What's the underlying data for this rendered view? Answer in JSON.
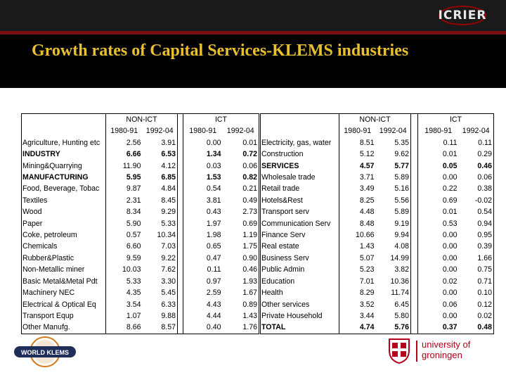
{
  "header": {
    "logo_text": "ICRIER",
    "title": "Growth rates of Capital Services-KLEMS industries"
  },
  "table_left": {
    "group_headers": [
      "NON-ICT",
      "ICT"
    ],
    "period_headers": [
      "1980-91",
      "1992-04",
      "1980-91",
      "1992-04"
    ],
    "rows": [
      {
        "name": "Agriculture, Hunting etc",
        "v": [
          "2.56",
          "3.91",
          "0.00",
          "0.01"
        ],
        "bold": false
      },
      {
        "name": "INDUSTRY",
        "v": [
          "6.66",
          "6.53",
          "1.34",
          "0.72"
        ],
        "bold": true
      },
      {
        "name": "Mining&Quarrying",
        "v": [
          "11.90",
          "4.12",
          "0.03",
          "0.06"
        ],
        "bold": false
      },
      {
        "name": "MANUFACTURING",
        "v": [
          "5.95",
          "6.85",
          "1.53",
          "0.82"
        ],
        "bold": true
      },
      {
        "name": "Food, Beverage, Tobac",
        "v": [
          "9.87",
          "4.84",
          "0.54",
          "0.21"
        ],
        "bold": false
      },
      {
        "name": "Textiles",
        "v": [
          "2.31",
          "8.45",
          "3.81",
          "0.49"
        ],
        "bold": false
      },
      {
        "name": "Wood",
        "v": [
          "8.34",
          "9.29",
          "0.43",
          "2.73"
        ],
        "bold": false
      },
      {
        "name": "Paper",
        "v": [
          "5.90",
          "5.33",
          "1.97",
          "0.69"
        ],
        "bold": false
      },
      {
        "name": "Coke, petroleum",
        "v": [
          "0.57",
          "10.34",
          "1.98",
          "1.19"
        ],
        "bold": false
      },
      {
        "name": "Chemicals",
        "v": [
          "6.60",
          "7.03",
          "0.65",
          "1.75"
        ],
        "bold": false
      },
      {
        "name": "Rubber&Plastic",
        "v": [
          "9.59",
          "9.22",
          "0.47",
          "0.90"
        ],
        "bold": false
      },
      {
        "name": "Non-Metallic miner",
        "v": [
          "10.03",
          "7.62",
          "0.11",
          "0.46"
        ],
        "bold": false
      },
      {
        "name": "Basic Metal&Metal Pdt",
        "v": [
          "5.33",
          "3.30",
          "0.97",
          "1.93"
        ],
        "bold": false
      },
      {
        "name": "Machinery NEC",
        "v": [
          "4.35",
          "5.45",
          "2.59",
          "1.67"
        ],
        "bold": false
      },
      {
        "name": "Electrical & Optical Eq",
        "v": [
          "3.54",
          "6.33",
          "4.43",
          "0.89"
        ],
        "bold": false
      },
      {
        "name": "Transport Equp",
        "v": [
          "1.07",
          "9.88",
          "4.44",
          "1.43"
        ],
        "bold": false
      },
      {
        "name": "Other Manufg.",
        "v": [
          "8.66",
          "8.57",
          "0.40",
          "1.76"
        ],
        "bold": false
      }
    ]
  },
  "table_right": {
    "group_headers": [
      "NON-ICT",
      "ICT"
    ],
    "period_headers": [
      "1980-91",
      "1992-04",
      "1980-91",
      "1992-04"
    ],
    "rows": [
      {
        "name": "Electricity, gas, water",
        "v": [
          "8.51",
          "5.35",
          "0.11",
          "0.11"
        ],
        "bold": false
      },
      {
        "name": "Construction",
        "v": [
          "5.12",
          "9.62",
          "0.01",
          "0.29"
        ],
        "bold": false
      },
      {
        "name": "SERVICES",
        "v": [
          "4.57",
          "5.77",
          "0.05",
          "0.46"
        ],
        "bold": true
      },
      {
        "name": "Wholesale trade",
        "v": [
          "3.71",
          "5.89",
          "0.00",
          "0.06"
        ],
        "bold": false
      },
      {
        "name": "Retail trade",
        "v": [
          "3.49",
          "5.16",
          "0.22",
          "0.38"
        ],
        "bold": false
      },
      {
        "name": "Hotels&Rest",
        "v": [
          "8.25",
          "5.56",
          "0.69",
          "-0.02"
        ],
        "bold": false
      },
      {
        "name": "Transport serv",
        "v": [
          "4.48",
          "5.89",
          "0.01",
          "0.54"
        ],
        "bold": false
      },
      {
        "name": "Communication Serv",
        "v": [
          "8.48",
          "9.19",
          "0.53",
          "0.94"
        ],
        "bold": false
      },
      {
        "name": "Finance Serv",
        "v": [
          "10.66",
          "9.94",
          "0.00",
          "0.95"
        ],
        "bold": false
      },
      {
        "name": "Real estate",
        "v": [
          "1.43",
          "4.08",
          "0.00",
          "0.39"
        ],
        "bold": false
      },
      {
        "name": "Business Serv",
        "v": [
          "5.07",
          "14.99",
          "0.00",
          "1.66"
        ],
        "bold": false
      },
      {
        "name": "Public Admin",
        "v": [
          "5.23",
          "3.82",
          "0.00",
          "0.75"
        ],
        "bold": false
      },
      {
        "name": "Education",
        "v": [
          "7.01",
          "10.36",
          "0.02",
          "0.71"
        ],
        "bold": false
      },
      {
        "name": "Health",
        "v": [
          "8.29",
          "11.74",
          "0.00",
          "0.10"
        ],
        "bold": false
      },
      {
        "name": "Other services",
        "v": [
          "3.52",
          "6.45",
          "0.06",
          "0.12"
        ],
        "bold": false
      },
      {
        "name": "Private Household",
        "v": [
          "3.44",
          "5.80",
          "0.00",
          "0.02"
        ],
        "bold": false
      },
      {
        "name": "TOTAL",
        "v": [
          "4.74",
          "5.76",
          "0.37",
          "0.48"
        ],
        "bold": true
      }
    ]
  },
  "footer": {
    "world_klems_logo": "WORLD KLEMS",
    "university_line1": "university of",
    "university_line2": "groningen"
  }
}
